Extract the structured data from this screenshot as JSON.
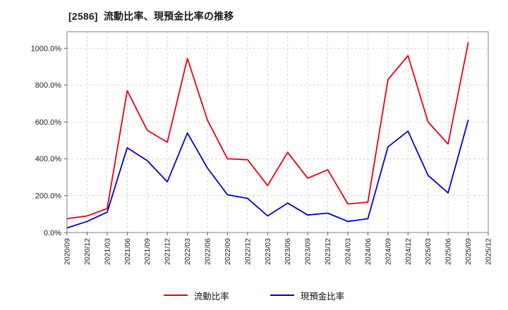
{
  "chart_data": {
    "type": "line",
    "title": "[2586]  流動比率、現預金比率の推移",
    "categories": [
      "2020/09",
      "2020/12",
      "2021/03",
      "2021/06",
      "2021/09",
      "2021/12",
      "2022/03",
      "2022/06",
      "2022/09",
      "2022/12",
      "2023/03",
      "2023/06",
      "2023/09",
      "2023/12",
      "2024/03",
      "2024/06",
      "2024/09",
      "2024/12",
      "2025/03",
      "2025/06",
      "2025/09",
      "2025/12"
    ],
    "series": [
      {
        "name": "流動比率",
        "color": "#e60012",
        "values": [
          75,
          90,
          130,
          770,
          555,
          490,
          945,
          610,
          400,
          395,
          255,
          435,
          295,
          340,
          155,
          165,
          830,
          960,
          600,
          480,
          1030,
          null
        ]
      },
      {
        "name": "現預金比率",
        "color": "#0000cd",
        "values": [
          25,
          60,
          110,
          460,
          390,
          275,
          540,
          350,
          205,
          185,
          90,
          160,
          95,
          105,
          60,
          75,
          465,
          550,
          310,
          215,
          610,
          null
        ]
      }
    ],
    "ylim": [
      0,
      1090
    ],
    "yticks": [
      0,
      200,
      400,
      600,
      800,
      1000
    ],
    "ytick_labels": [
      "0.0%",
      "200.0%",
      "400.0%",
      "600.0%",
      "800.0%",
      "1000.0%"
    ],
    "grid": true,
    "legend_position": "bottom",
    "xlabel": "",
    "ylabel": ""
  }
}
